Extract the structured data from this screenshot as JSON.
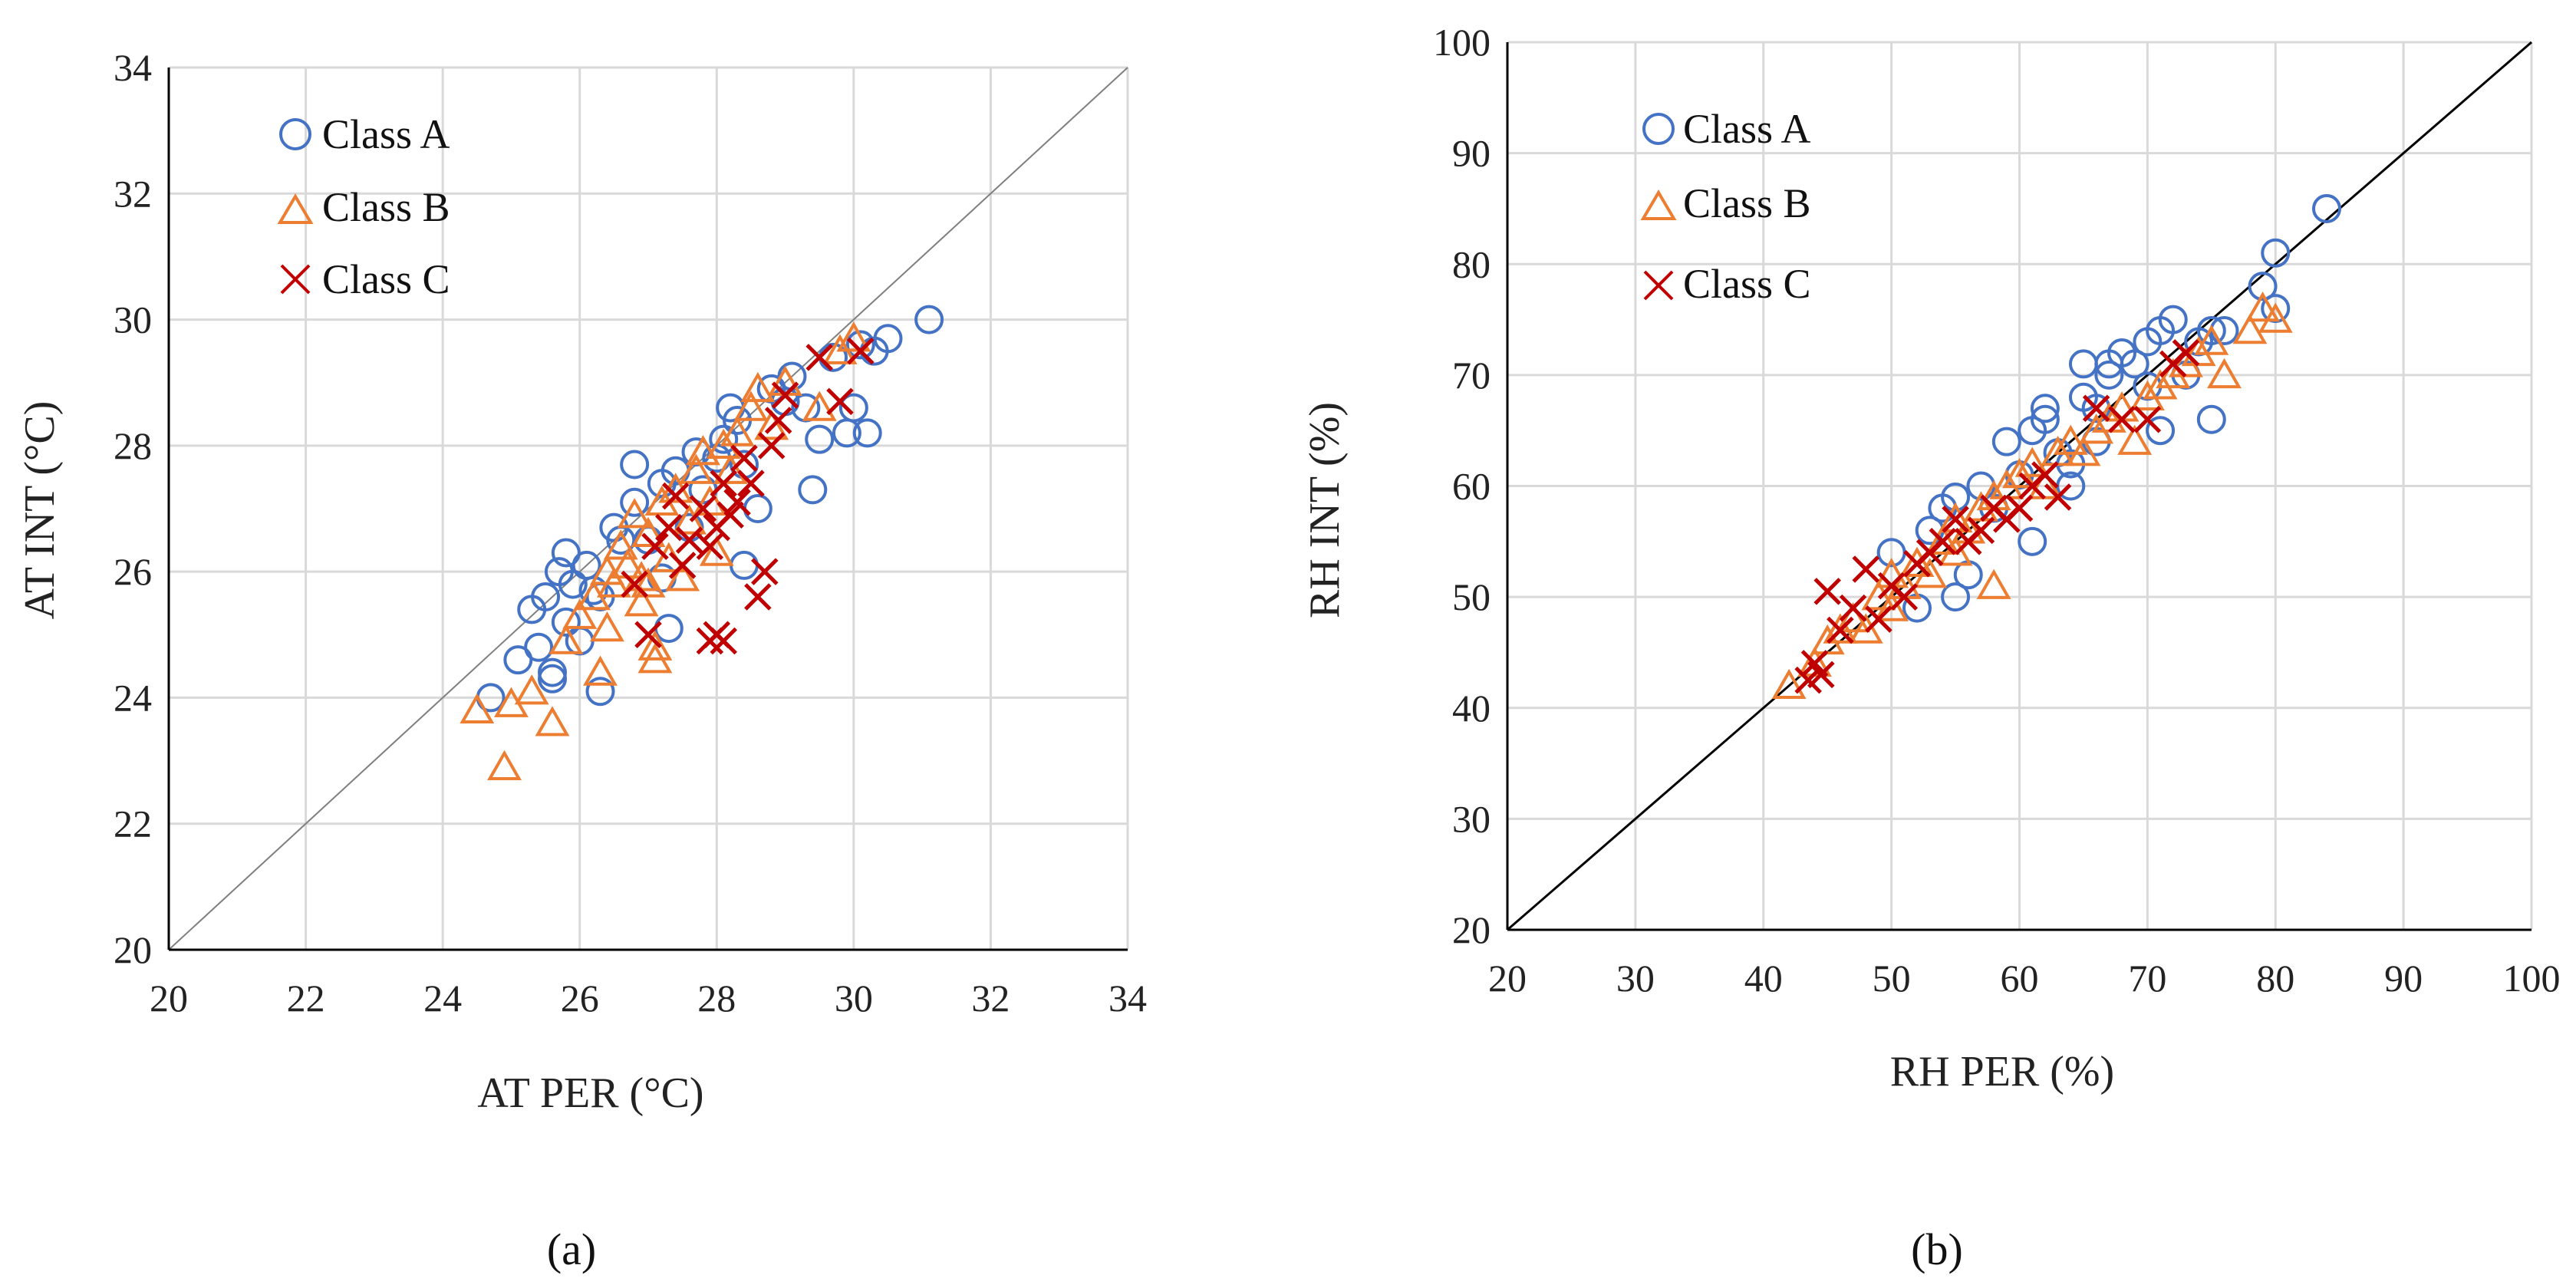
{
  "colors": {
    "class_a": "#4472C4",
    "class_b": "#ED7D31",
    "class_c": "#C00000",
    "grid": "#d9d9d9",
    "axis": "#000000"
  },
  "chart_data": [
    {
      "id": "a",
      "type": "scatter",
      "panel_label": "(a)",
      "xlabel": "AT PER (°C)",
      "ylabel": "AT INT (°C)",
      "xlim": [
        20,
        34
      ],
      "ylim": [
        20,
        34
      ],
      "xticks": [
        "20",
        "22",
        "24",
        "26",
        "28",
        "30",
        "32",
        "34"
      ],
      "yticks": [
        "20",
        "22",
        "24",
        "26",
        "28",
        "30",
        "32",
        "34"
      ],
      "identity_line": true,
      "legend": [
        "Class A",
        "Class B",
        "Class C"
      ],
      "series": [
        {
          "name": "Class A",
          "marker": "circle",
          "x": [
            24.7,
            25.1,
            25.3,
            25.4,
            25.5,
            25.6,
            25.7,
            25.8,
            25.9,
            26.0,
            26.1,
            26.2,
            26.3,
            26.5,
            26.6,
            26.8,
            26.8,
            27.0,
            27.2,
            27.3,
            27.4,
            27.6,
            27.7,
            27.8,
            28.0,
            28.1,
            28.2,
            28.3,
            28.4,
            28.6,
            28.8,
            29.0,
            29.1,
            29.3,
            29.4,
            29.5,
            29.7,
            29.9,
            30.0,
            30.1,
            30.2,
            30.3,
            30.5,
            31.1,
            25.6,
            25.8,
            26.3,
            27.2,
            28.4
          ],
          "y": [
            24.0,
            24.6,
            25.4,
            24.8,
            25.6,
            24.3,
            26.0,
            26.3,
            25.8,
            24.9,
            26.1,
            25.7,
            24.1,
            26.7,
            26.5,
            27.7,
            27.1,
            26.5,
            27.4,
            25.1,
            27.6,
            26.7,
            27.9,
            27.3,
            27.8,
            28.1,
            28.6,
            28.4,
            26.1,
            27.0,
            28.9,
            28.7,
            29.1,
            28.6,
            27.3,
            28.1,
            29.4,
            28.2,
            28.6,
            29.6,
            28.2,
            29.5,
            29.7,
            30.0,
            24.4,
            25.2,
            25.6,
            25.9,
            27.7
          ]
        },
        {
          "name": "Class B",
          "marker": "triangle",
          "x": [
            24.5,
            24.9,
            25.0,
            25.3,
            25.6,
            25.8,
            26.0,
            26.2,
            26.3,
            26.4,
            26.5,
            26.6,
            26.7,
            26.8,
            26.9,
            27.0,
            27.1,
            27.1,
            27.2,
            27.3,
            27.4,
            27.5,
            27.6,
            27.7,
            27.8,
            27.9,
            28.0,
            28.1,
            28.2,
            28.3,
            28.5,
            28.6,
            28.8,
            29.0,
            29.5,
            29.8,
            30.0,
            26.4,
            26.9,
            27.0
          ],
          "y": [
            23.8,
            22.9,
            23.9,
            24.1,
            23.6,
            24.9,
            25.3,
            25.6,
            24.4,
            26.0,
            25.8,
            26.4,
            26.1,
            26.9,
            25.9,
            26.6,
            24.6,
            24.8,
            27.1,
            26.2,
            27.3,
            25.9,
            26.8,
            27.6,
            27.9,
            27.1,
            26.3,
            28.0,
            27.6,
            28.2,
            28.6,
            28.9,
            28.3,
            29.0,
            28.6,
            29.5,
            29.7,
            25.1,
            25.5,
            25.8
          ]
        },
        {
          "name": "Class C",
          "marker": "x",
          "x": [
            26.8,
            27.0,
            27.1,
            27.3,
            27.4,
            27.5,
            27.6,
            27.8,
            27.9,
            28.0,
            28.1,
            28.2,
            28.3,
            28.4,
            28.5,
            28.6,
            28.7,
            28.8,
            28.9,
            29.0,
            29.5,
            29.8,
            30.1,
            27.9,
            28.0,
            28.1
          ],
          "y": [
            25.8,
            25.0,
            26.4,
            26.7,
            27.2,
            26.1,
            26.5,
            27.0,
            26.4,
            26.7,
            27.4,
            26.9,
            27.1,
            27.8,
            27.4,
            25.6,
            26.0,
            28.0,
            28.4,
            28.8,
            29.4,
            28.7,
            29.5,
            24.9,
            25.0,
            24.9
          ]
        }
      ]
    },
    {
      "id": "b",
      "type": "scatter",
      "panel_label": "(b)",
      "xlabel": "RH PER (%)",
      "ylabel": "RH INT (%)",
      "xlim": [
        20,
        100
      ],
      "ylim": [
        20,
        100
      ],
      "xticks": [
        "20",
        "30",
        "40",
        "50",
        "60",
        "70",
        "80",
        "90",
        "100"
      ],
      "yticks": [
        "20",
        "30",
        "40",
        "50",
        "60",
        "70",
        "80",
        "90",
        "100"
      ],
      "identity_line": true,
      "legend": [
        "Class A",
        "Class B",
        "Class C"
      ],
      "series": [
        {
          "name": "Class A",
          "marker": "circle",
          "x": [
            50,
            52,
            53,
            54,
            55,
            56,
            57,
            58,
            59,
            60,
            61,
            62,
            62,
            63,
            64,
            65,
            65,
            66,
            67,
            67,
            68,
            69,
            70,
            70,
            71,
            71,
            72,
            73,
            74,
            75,
            75,
            76,
            79,
            80,
            80,
            84,
            61,
            64,
            66,
            55
          ],
          "y": [
            54,
            49,
            56,
            58,
            59,
            52,
            60,
            58,
            64,
            61,
            55,
            66,
            67,
            63,
            62,
            71,
            68,
            67,
            70,
            71,
            72,
            71,
            73,
            69,
            74,
            65,
            75,
            70,
            73,
            66,
            74,
            74,
            78,
            76,
            81,
            85,
            65,
            60,
            64,
            50
          ]
        },
        {
          "name": "Class B",
          "marker": "triangle",
          "x": [
            42,
            44,
            45,
            46,
            47,
            48,
            49,
            50,
            50,
            51,
            52,
            53,
            54,
            55,
            55,
            56,
            57,
            58,
            58,
            59,
            60,
            61,
            62,
            63,
            64,
            65,
            66,
            67,
            68,
            69,
            70,
            71,
            72,
            73,
            74,
            75,
            76,
            78,
            79,
            80
          ],
          "y": [
            42,
            44,
            46,
            47,
            48,
            47,
            50,
            49,
            52,
            51,
            53,
            52,
            55,
            54,
            57,
            56,
            58,
            51,
            59,
            60,
            61,
            62,
            60,
            63,
            64,
            63,
            65,
            66,
            67,
            64,
            68,
            69,
            70,
            71,
            72,
            73,
            70,
            74,
            76,
            75
          ]
        },
        {
          "name": "Class C",
          "marker": "x",
          "x": [
            43.5,
            44,
            44.5,
            45,
            46,
            47,
            48,
            49,
            50,
            51,
            52,
            53,
            54,
            55,
            56,
            57,
            58,
            59,
            60,
            61,
            62,
            63,
            66,
            68,
            70,
            72,
            73
          ],
          "y": [
            42.5,
            44,
            43,
            50.5,
            47,
            49,
            52.5,
            48,
            51,
            50,
            53,
            54,
            55,
            57,
            55,
            56,
            58,
            57,
            58,
            60,
            61,
            59,
            67,
            66,
            66,
            71,
            72
          ]
        }
      ]
    }
  ]
}
